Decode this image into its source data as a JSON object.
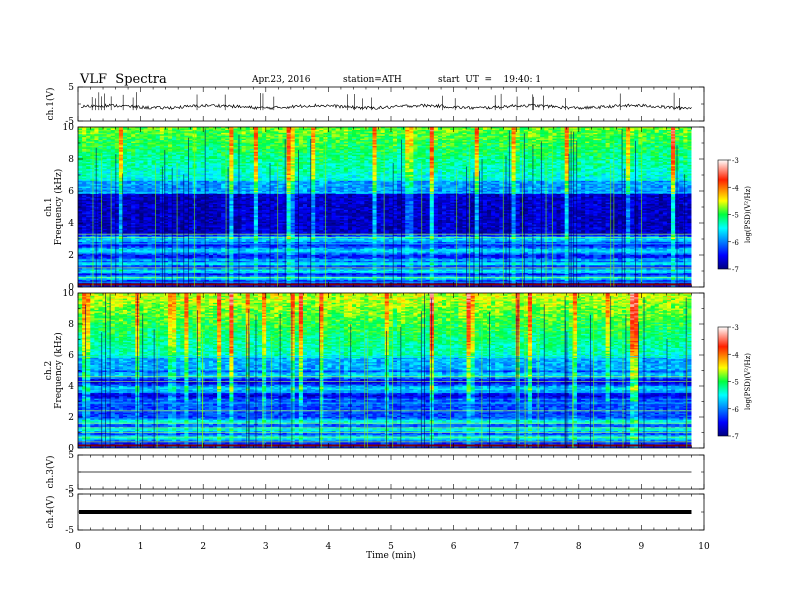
{
  "header": {
    "title": "VLF  Spectra",
    "date": "Apr.23, 2016",
    "station": "station=ATH",
    "start_ut": "start  UT  =    19:40: 1"
  },
  "chart_data": [
    {
      "type": "line",
      "ylabel": "ch.1(V)",
      "xlim": [
        0,
        10
      ],
      "ylim": [
        -5,
        5
      ],
      "yticks": [
        "5",
        "-5"
      ],
      "trace": "noisy waveform near -1 V with spikes",
      "level": -0.8
    },
    {
      "type": "heatmap",
      "ylabel": "ch.1\nFrequency (kHz)",
      "xlim": [
        0,
        10
      ],
      "ylim": [
        0,
        10
      ],
      "yticks": [
        "0",
        "2",
        "4",
        "6",
        "8",
        "10"
      ],
      "colorbar": {
        "label": "log(PSD)(V²/Hz)",
        "ticks": [
          "-3",
          "-4",
          "-5",
          "-6",
          "-7"
        ],
        "range": [
          -7,
          -3
        ]
      }
    },
    {
      "type": "heatmap",
      "ylabel": "ch.2\nFrequency (kHz)",
      "xlim": [
        0,
        10
      ],
      "ylim": [
        0,
        10
      ],
      "yticks": [
        "0",
        "2",
        "4",
        "6",
        "8",
        "10"
      ],
      "colorbar": {
        "label": "log(PSD)(V²/Hz)",
        "ticks": [
          "-3",
          "-4",
          "-5",
          "-6",
          "-7"
        ],
        "range": [
          -7,
          -3
        ]
      }
    },
    {
      "type": "line",
      "ylabel": "ch.3(V)",
      "xlim": [
        0,
        10
      ],
      "ylim": [
        -5,
        5
      ],
      "yticks": [
        "5",
        "-5"
      ],
      "level": 0
    },
    {
      "type": "line",
      "ylabel": "ch.4(V)",
      "xlim": [
        0,
        10
      ],
      "ylim": [
        -5,
        5
      ],
      "yticks": [
        "5",
        "-5"
      ],
      "level": 0
    }
  ],
  "x_axis": {
    "label": "Time  (min)",
    "ticks": [
      "0",
      "1",
      "2",
      "3",
      "4",
      "5",
      "6",
      "7",
      "8",
      "9",
      "10"
    ],
    "data_end": 9.8
  }
}
